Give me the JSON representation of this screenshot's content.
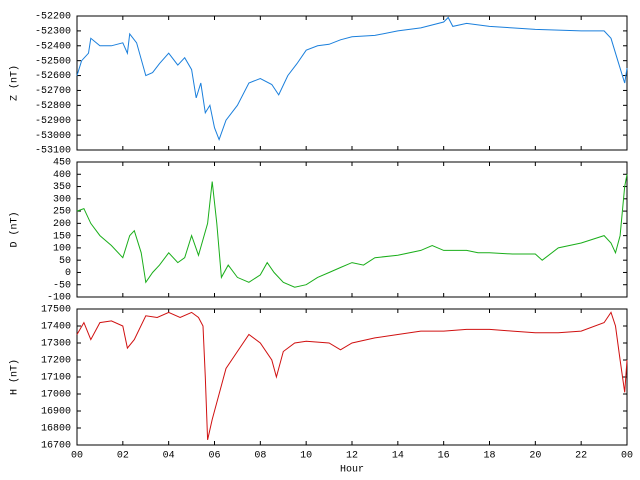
{
  "chart_data": [
    {
      "type": "line",
      "ylabel": "Z (nT)",
      "color": "#1a7fdc",
      "ylim": [
        -53100,
        -52200
      ],
      "yticks": [
        -52200,
        -52300,
        -52400,
        -52500,
        -52600,
        -52700,
        -52800,
        -52900,
        -53000,
        -53100
      ],
      "x": [
        0,
        0.2,
        0.5,
        0.6,
        1,
        1.5,
        2,
        2.2,
        2.3,
        2.6,
        3,
        3.3,
        3.6,
        4,
        4.4,
        4.7,
        5,
        5.2,
        5.4,
        5.6,
        5.8,
        6,
        6.2,
        6.5,
        7,
        7.5,
        8,
        8.5,
        8.8,
        9.2,
        9.6,
        10,
        10.5,
        11,
        11.5,
        12,
        13,
        14,
        15,
        16,
        16.2,
        16.4,
        17,
        18,
        19,
        20,
        21,
        22,
        23,
        23.3,
        23.6,
        23.8,
        23.9,
        24
      ],
      "values": [
        -52600,
        -52500,
        -52450,
        -52350,
        -52400,
        -52400,
        -52380,
        -52450,
        -52320,
        -52380,
        -52600,
        -52580,
        -52520,
        -52450,
        -52530,
        -52480,
        -52560,
        -52750,
        -52650,
        -52850,
        -52800,
        -52950,
        -53030,
        -52900,
        -52800,
        -52650,
        -52620,
        -52660,
        -52730,
        -52600,
        -52520,
        -52430,
        -52400,
        -52390,
        -52360,
        -52340,
        -52330,
        -52300,
        -52280,
        -52240,
        -52210,
        -52270,
        -52250,
        -52270,
        -52280,
        -52290,
        -52295,
        -52300,
        -52300,
        -52350,
        -52500,
        -52600,
        -52650,
        -52550
      ]
    },
    {
      "type": "line",
      "ylabel": "D (nT)",
      "color": "#1aae1a",
      "ylim": [
        -100,
        450
      ],
      "yticks": [
        450,
        400,
        350,
        300,
        250,
        200,
        150,
        100,
        50,
        0,
        -50,
        -100
      ],
      "x": [
        0,
        0.3,
        0.6,
        1,
        1.5,
        2,
        2.3,
        2.5,
        2.8,
        3,
        3.3,
        3.6,
        4,
        4.4,
        4.7,
        5,
        5.3,
        5.7,
        5.9,
        6.1,
        6.3,
        6.6,
        7,
        7.5,
        8,
        8.3,
        8.6,
        9,
        9.5,
        10,
        10.5,
        11,
        11.5,
        12,
        12.5,
        13,
        14,
        15,
        15.5,
        16,
        17,
        17.5,
        18,
        19,
        20,
        20.3,
        21,
        22,
        23,
        23.3,
        23.5,
        23.7,
        23.9,
        24
      ],
      "values": [
        250,
        260,
        200,
        150,
        110,
        60,
        150,
        170,
        80,
        -40,
        0,
        30,
        80,
        40,
        60,
        150,
        70,
        200,
        370,
        200,
        -20,
        30,
        -20,
        -40,
        -10,
        40,
        0,
        -40,
        -60,
        -50,
        -20,
        0,
        20,
        40,
        30,
        60,
        70,
        90,
        110,
        90,
        90,
        80,
        80,
        75,
        75,
        50,
        100,
        120,
        150,
        120,
        80,
        150,
        350,
        400
      ]
    },
    {
      "type": "line",
      "ylabel": "H (nT)",
      "xlabel": "Hour",
      "color": "#d01010",
      "ylim": [
        16700,
        17500
      ],
      "yticks": [
        17500,
        17400,
        17300,
        17200,
        17100,
        17000,
        16900,
        16800,
        16700
      ],
      "xlim": [
        0,
        24
      ],
      "xticks": [
        {
          "value": 0,
          "label": "00"
        },
        {
          "value": 2,
          "label": "02"
        },
        {
          "value": 4,
          "label": "04"
        },
        {
          "value": 6,
          "label": "06"
        },
        {
          "value": 8,
          "label": "08"
        },
        10,
        12,
        14,
        16,
        18,
        20,
        22,
        {
          "value": 24,
          "label": "00"
        }
      ],
      "x": [
        0,
        0.3,
        0.6,
        1,
        1.5,
        2,
        2.2,
        2.5,
        3,
        3.5,
        4,
        4.5,
        5,
        5.3,
        5.5,
        5.6,
        5.7,
        5.9,
        6.2,
        6.5,
        7,
        7.5,
        8,
        8.5,
        8.7,
        9,
        9.5,
        10,
        11,
        11.5,
        12,
        13,
        14,
        15,
        16,
        17,
        18,
        19,
        20,
        21,
        22,
        23,
        23.3,
        23.5,
        23.7,
        23.9,
        24
      ],
      "values": [
        17350,
        17420,
        17320,
        17420,
        17430,
        17400,
        17270,
        17320,
        17460,
        17450,
        17480,
        17450,
        17480,
        17450,
        17400,
        17100,
        16730,
        16850,
        17000,
        17150,
        17250,
        17350,
        17300,
        17200,
        17100,
        17250,
        17300,
        17310,
        17300,
        17260,
        17300,
        17330,
        17350,
        17370,
        17370,
        17380,
        17380,
        17370,
        17360,
        17360,
        17370,
        17420,
        17480,
        17400,
        17200,
        17010,
        17200
      ]
    }
  ]
}
